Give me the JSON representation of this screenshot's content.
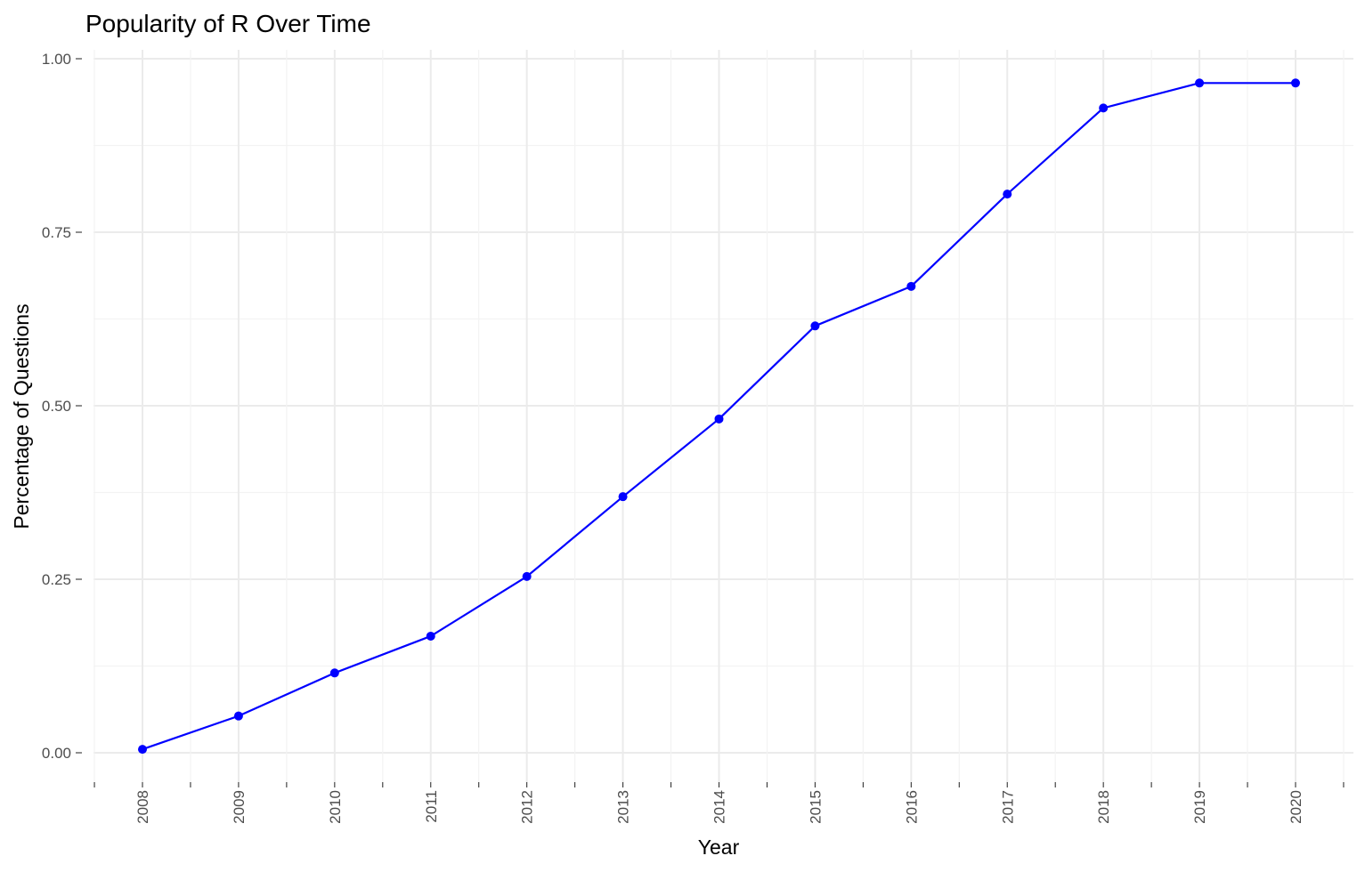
{
  "chart_data": {
    "type": "line",
    "title": "Popularity of R Over Time",
    "xlabel": "Year",
    "ylabel": "Percentage of Questions",
    "x": [
      2008,
      2009,
      2010,
      2011,
      2012,
      2013,
      2014,
      2015,
      2016,
      2017,
      2018,
      2019,
      2020
    ],
    "x_tick_labels": [
      "2008",
      "2009",
      "2010",
      "2011",
      "2012",
      "2013",
      "2014",
      "2015",
      "2016",
      "2017",
      "2018",
      "2019",
      "2020"
    ],
    "series": [
      {
        "values": [
          0.005,
          0.053,
          0.115,
          0.168,
          0.254,
          0.369,
          0.481,
          0.615,
          0.672,
          0.805,
          0.929,
          0.965,
          0.965
        ],
        "color": "#0000ff"
      }
    ],
    "ylim": [
      0,
      1
    ],
    "y_ticks": [
      0,
      0.25,
      0.5,
      0.75,
      1
    ],
    "y_tick_labels": [
      "0.00",
      "0.25",
      "0.50",
      "0.75",
      "1.00"
    ],
    "grid": true,
    "legend": "none"
  }
}
